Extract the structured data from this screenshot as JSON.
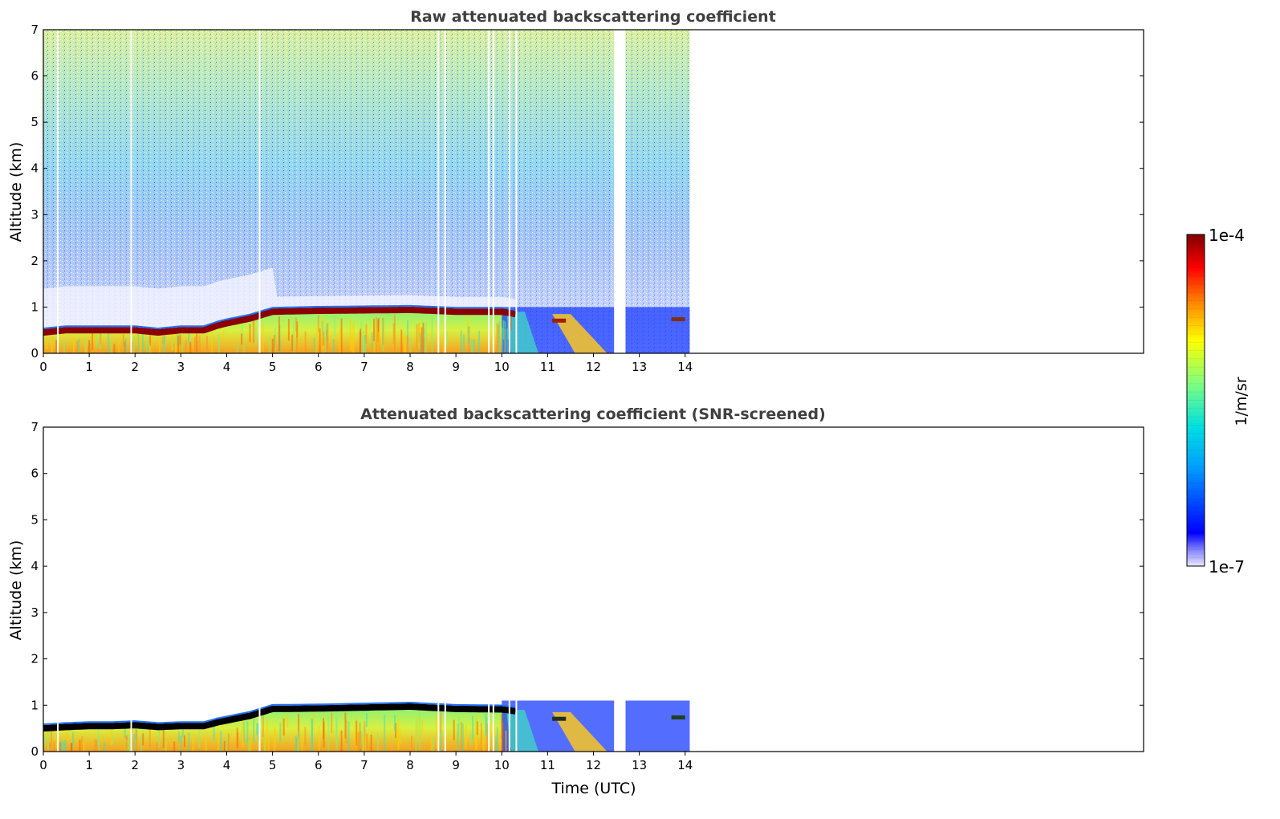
{
  "chart_data": [
    {
      "type": "heatmap",
      "title": "Raw attenuated backscattering coefficient",
      "xlabel": "",
      "ylabel": "Altitude (km)",
      "xlim": [
        0,
        24
      ],
      "ylim": [
        0,
        7
      ],
      "xticks": [
        0,
        1,
        2,
        3,
        4,
        5,
        6,
        7,
        8,
        9,
        10,
        11,
        12,
        13,
        14
      ],
      "yticks": [
        0,
        1,
        2,
        3,
        4,
        5,
        6,
        7
      ],
      "data_extent_hours": [
        0,
        14.1
      ],
      "data_gap_hours": [
        12.45,
        12.7
      ],
      "layer_top_km": {
        "time": [
          0,
          0.5,
          1,
          1.5,
          2,
          2.5,
          3,
          3.5,
          3.8,
          4,
          4.5,
          5,
          6,
          7,
          8,
          9,
          10,
          10.3
        ],
        "altitude": [
          0.5,
          0.55,
          0.55,
          0.55,
          0.55,
          0.5,
          0.55,
          0.55,
          0.65,
          0.7,
          0.8,
          0.95,
          0.97,
          0.98,
          0.99,
          0.95,
          0.95,
          0.9
        ]
      },
      "grid": false
    },
    {
      "type": "heatmap",
      "title": "Attenuated backscattering coefficient (SNR-screened)",
      "xlabel": "Time (UTC)",
      "ylabel": "Altitude (km)",
      "xlim": [
        0,
        24
      ],
      "ylim": [
        0,
        7
      ],
      "xticks": [
        0,
        1,
        2,
        3,
        4,
        5,
        6,
        7,
        8,
        9,
        10,
        11,
        12,
        13,
        14
      ],
      "yticks": [
        0,
        1,
        2,
        3,
        4,
        5,
        6,
        7
      ],
      "data_extent_hours": [
        0,
        14.1
      ],
      "data_gap_hours": [
        12.45,
        12.7
      ],
      "layer_top_km": {
        "time": [
          0,
          0.5,
          1,
          1.5,
          2,
          2.5,
          3,
          3.5,
          3.8,
          4,
          4.5,
          5,
          6,
          7,
          8,
          9,
          10,
          10.3
        ],
        "altitude": [
          0.55,
          0.58,
          0.6,
          0.6,
          0.62,
          0.58,
          0.6,
          0.6,
          0.68,
          0.72,
          0.82,
          0.97,
          0.98,
          1.0,
          1.02,
          0.97,
          0.96,
          0.92
        ]
      },
      "grid": false
    }
  ],
  "colorbar": {
    "label": "1/m/sr",
    "max_label": "1e-4",
    "min_label": "1e-7",
    "scale": "log",
    "range": [
      1e-07,
      0.0001
    ],
    "colormap": "jet"
  },
  "colors": {
    "title": "#404040",
    "layer_peak": "#8b0000",
    "screened_peak": "#000000"
  }
}
